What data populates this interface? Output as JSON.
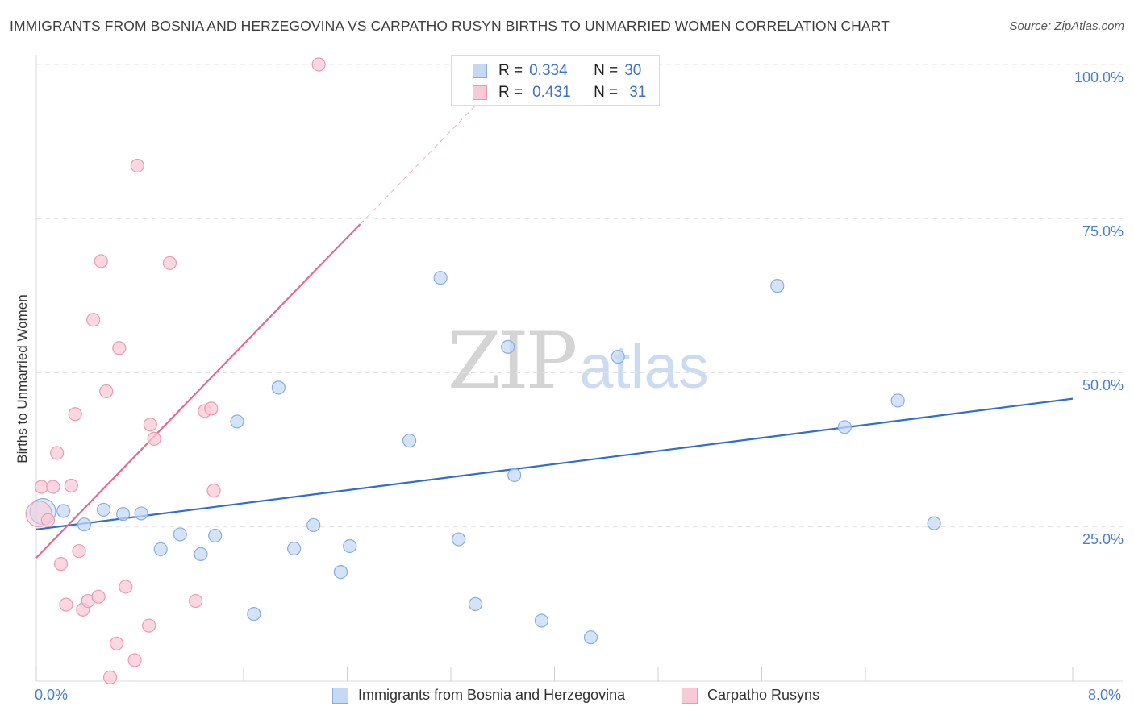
{
  "header": {
    "title": "IMMIGRANTS FROM BOSNIA AND HERZEGOVINA VS CARPATHO RUSYN BIRTHS TO UNMARRIED WOMEN CORRELATION CHART",
    "source": "Source: ZipAtlas.com"
  },
  "watermark": {
    "zip": "ZIP",
    "atlas": "atlas"
  },
  "legend": {
    "rows": [
      {
        "r_label": "R =",
        "r_value": "0.334",
        "n_label": "N =",
        "n_value": "30"
      },
      {
        "r_label": "R =",
        "r_value": "0.431",
        "n_label": "N =",
        "n_value": "31"
      }
    ]
  },
  "colors": {
    "blue_fill": "#c5d9f4",
    "blue_stroke": "#86aee3",
    "blue_line": "#2f6ecb",
    "pink_fill": "#f8cad7",
    "pink_stroke": "#ec9ab2",
    "pink_line": "#e8688f"
  },
  "chart_data": {
    "type": "scatter",
    "title": "IMMIGRANTS FROM BOSNIA AND HERZEGOVINA VS CARPATHO RUSYN BIRTHS TO UNMARRIED WOMEN CORRELATION CHART",
    "xlabel": "",
    "ylabel": "Births to Unmarried Women",
    "xlim": [
      0,
      8
    ],
    "ylim": [
      0,
      100
    ],
    "x_tick_labels": [
      "0.0%",
      "8.0%"
    ],
    "y_tick_labels": [
      "100.0%",
      "75.0%",
      "50.0%",
      "25.0%"
    ],
    "y_ticks": [
      100,
      75,
      50,
      25
    ],
    "series": [
      {
        "name": "Immigrants from Bosnia and Herzegovina",
        "color": "blue",
        "R": 0.334,
        "N": 30,
        "trend": {
          "x": [
            0,
            8
          ],
          "y": [
            24.6,
            45.8
          ]
        },
        "points": [
          {
            "x": 0.05,
            "y": 27.5,
            "big": true
          },
          {
            "x": 0.21,
            "y": 27.6
          },
          {
            "x": 0.37,
            "y": 25.4
          },
          {
            "x": 0.52,
            "y": 27.8
          },
          {
            "x": 0.67,
            "y": 27.1
          },
          {
            "x": 0.81,
            "y": 27.2
          },
          {
            "x": 0.96,
            "y": 21.4
          },
          {
            "x": 1.11,
            "y": 23.8
          },
          {
            "x": 1.27,
            "y": 20.6
          },
          {
            "x": 1.38,
            "y": 23.6
          },
          {
            "x": 1.55,
            "y": 42.1
          },
          {
            "x": 1.68,
            "y": 10.9
          },
          {
            "x": 1.87,
            "y": 47.6
          },
          {
            "x": 1.99,
            "y": 21.5
          },
          {
            "x": 2.14,
            "y": 25.3
          },
          {
            "x": 2.35,
            "y": 17.7
          },
          {
            "x": 2.42,
            "y": 21.9
          },
          {
            "x": 2.88,
            "y": 39.0
          },
          {
            "x": 3.12,
            "y": 65.4
          },
          {
            "x": 3.26,
            "y": 23.0
          },
          {
            "x": 3.39,
            "y": 12.5
          },
          {
            "x": 3.64,
            "y": 54.2
          },
          {
            "x": 3.69,
            "y": 33.4
          },
          {
            "x": 3.9,
            "y": 9.8
          },
          {
            "x": 4.28,
            "y": 7.1
          },
          {
            "x": 4.49,
            "y": 52.6
          },
          {
            "x": 5.72,
            "y": 64.1
          },
          {
            "x": 6.24,
            "y": 41.2
          },
          {
            "x": 6.65,
            "y": 45.5
          },
          {
            "x": 6.93,
            "y": 25.6
          }
        ]
      },
      {
        "name": "Carpatho Rusyns",
        "color": "pink",
        "R": 0.431,
        "N": 31,
        "trend": {
          "x": [
            0,
            2.5
          ],
          "y": [
            20.0,
            74.1
          ]
        },
        "points": [
          {
            "x": 0.02,
            "y": 27.1,
            "big": true
          },
          {
            "x": 0.04,
            "y": 31.5
          },
          {
            "x": 0.09,
            "y": 26.1
          },
          {
            "x": 0.13,
            "y": 31.5
          },
          {
            "x": 0.16,
            "y": 37.0
          },
          {
            "x": 0.19,
            "y": 19.0
          },
          {
            "x": 0.23,
            "y": 12.4
          },
          {
            "x": 0.27,
            "y": 31.7
          },
          {
            "x": 0.3,
            "y": 43.3
          },
          {
            "x": 0.33,
            "y": 21.1
          },
          {
            "x": 0.36,
            "y": 11.6
          },
          {
            "x": 0.4,
            "y": 13.0
          },
          {
            "x": 0.44,
            "y": 58.6
          },
          {
            "x": 0.48,
            "y": 13.7
          },
          {
            "x": 0.5,
            "y": 68.1
          },
          {
            "x": 0.54,
            "y": 47.0
          },
          {
            "x": 0.57,
            "y": 0.6
          },
          {
            "x": 0.62,
            "y": 6.1
          },
          {
            "x": 0.64,
            "y": 54.0
          },
          {
            "x": 0.69,
            "y": 15.3
          },
          {
            "x": 0.76,
            "y": 3.4
          },
          {
            "x": 0.78,
            "y": 83.6
          },
          {
            "x": 0.87,
            "y": 9.0
          },
          {
            "x": 0.88,
            "y": 41.6
          },
          {
            "x": 0.91,
            "y": 39.3
          },
          {
            "x": 1.03,
            "y": 67.8
          },
          {
            "x": 1.23,
            "y": 13.0
          },
          {
            "x": 1.3,
            "y": 43.8
          },
          {
            "x": 1.35,
            "y": 44.2
          },
          {
            "x": 1.37,
            "y": 30.9
          },
          {
            "x": 2.18,
            "y": 100.0
          }
        ]
      }
    ]
  },
  "bottom_legend": {
    "items": [
      {
        "label": "Immigrants from Bosnia and Herzegovina"
      },
      {
        "label": "Carpatho Rusyns"
      }
    ]
  }
}
